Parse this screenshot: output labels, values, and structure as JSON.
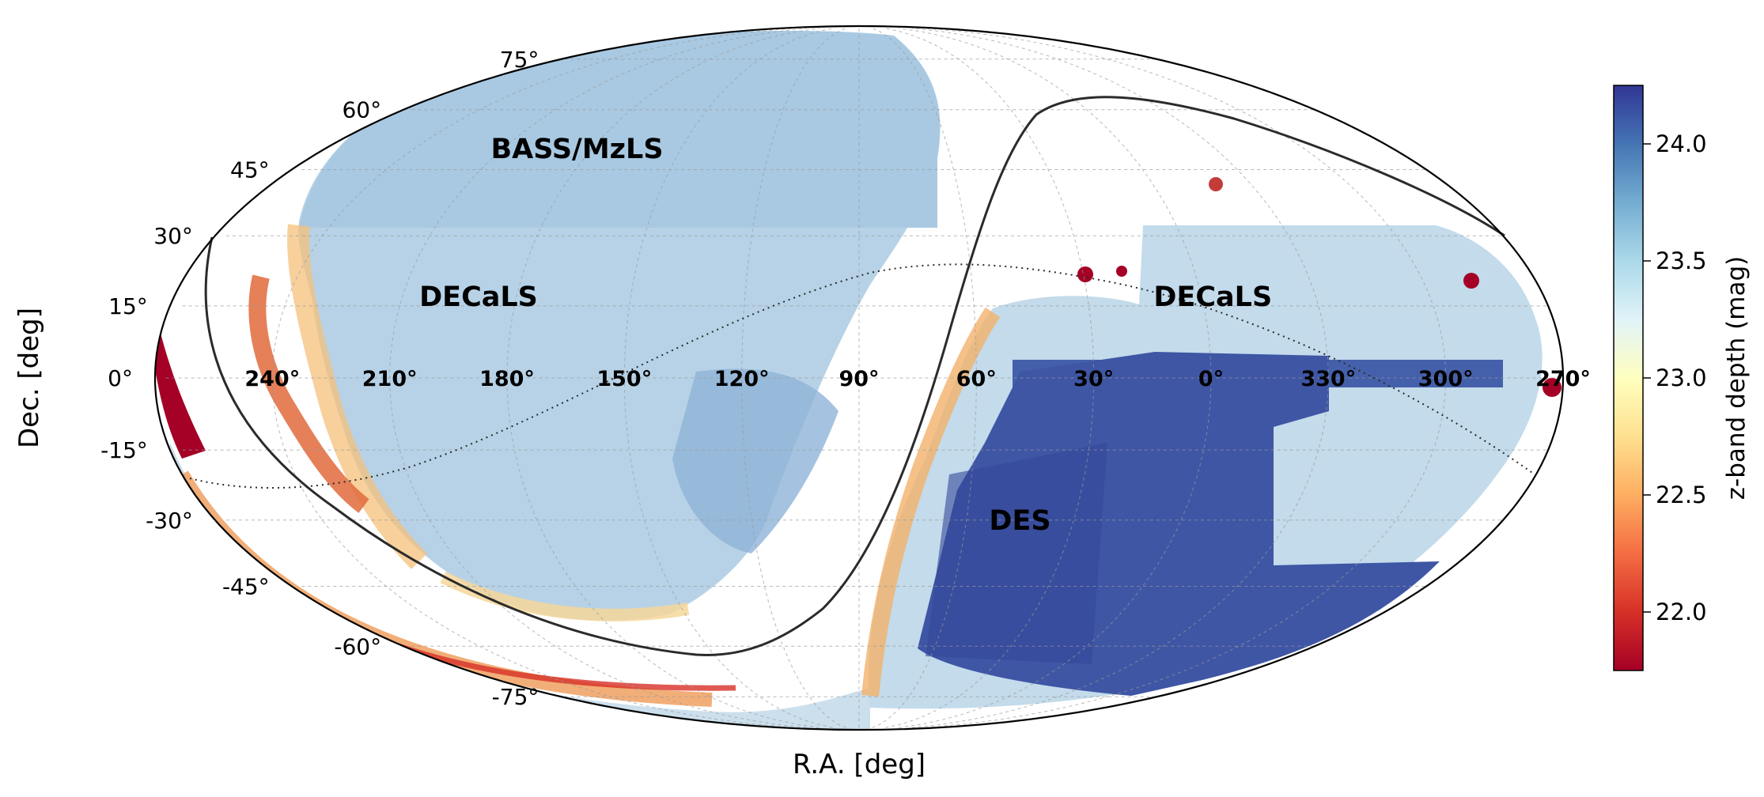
{
  "chart_data": {
    "type": "heatmap",
    "projection": "Mollweide",
    "grid": true,
    "xlabel": "R.A. [deg]",
    "ylabel": "Dec. [deg]",
    "ra_ticks": [
      {
        "ra": 300,
        "label": "300°"
      },
      {
        "ra": 270,
        "label": "270°"
      },
      {
        "ra": 240,
        "label": "240°"
      },
      {
        "ra": 210,
        "label": "210°"
      },
      {
        "ra": 180,
        "label": "180°"
      },
      {
        "ra": 150,
        "label": "150°"
      },
      {
        "ra": 120,
        "label": "120°"
      },
      {
        "ra": 90,
        "label": "90°"
      },
      {
        "ra": 60,
        "label": "60°"
      },
      {
        "ra": 30,
        "label": "30°"
      },
      {
        "ra": 0,
        "label": "0°"
      },
      {
        "ra": 330,
        "label": "330°"
      }
    ],
    "dec_ticks": [
      {
        "dec": 75,
        "label": "75°"
      },
      {
        "dec": 60,
        "label": "60°"
      },
      {
        "dec": 45,
        "label": "45°"
      },
      {
        "dec": 30,
        "label": "30°"
      },
      {
        "dec": 15,
        "label": "15°"
      },
      {
        "dec": 0,
        "label": "0°"
      },
      {
        "dec": -15,
        "label": "-15°"
      },
      {
        "dec": -30,
        "label": "-30°"
      },
      {
        "dec": -45,
        "label": "-45°"
      },
      {
        "dec": -60,
        "label": "-60°"
      },
      {
        "dec": -75,
        "label": "-75°"
      }
    ],
    "regions": [
      {
        "label": "BASS/MzLS",
        "ra": 185,
        "dec": 50,
        "depth": 23.4
      },
      {
        "label": "DECaLS",
        "ra": 190,
        "dec": 17,
        "depth": 23.3
      },
      {
        "label": "DECaLS",
        "ra": 357,
        "dec": 17,
        "depth": 23.4
      },
      {
        "label": "DES",
        "ra": 45,
        "dec": -30,
        "depth": 24.0
      }
    ],
    "colorbar": {
      "label": "z-band depth (mag)",
      "range": [
        21.75,
        24.25
      ],
      "ticks": [
        {
          "value": 22.0,
          "label": "22.0"
        },
        {
          "value": 22.5,
          "label": "22.5"
        },
        {
          "value": 23.0,
          "label": "23.0"
        },
        {
          "value": 23.5,
          "label": "23.5"
        },
        {
          "value": 24.0,
          "label": "24.0"
        }
      ],
      "colormap": "RdYlBu",
      "colors": [
        "#a50026",
        "#d73027",
        "#f46d43",
        "#fdae61",
        "#fee090",
        "#ffffbf",
        "#e0f3f8",
        "#abd9e9",
        "#74add1",
        "#4575b4",
        "#313695"
      ]
    }
  }
}
